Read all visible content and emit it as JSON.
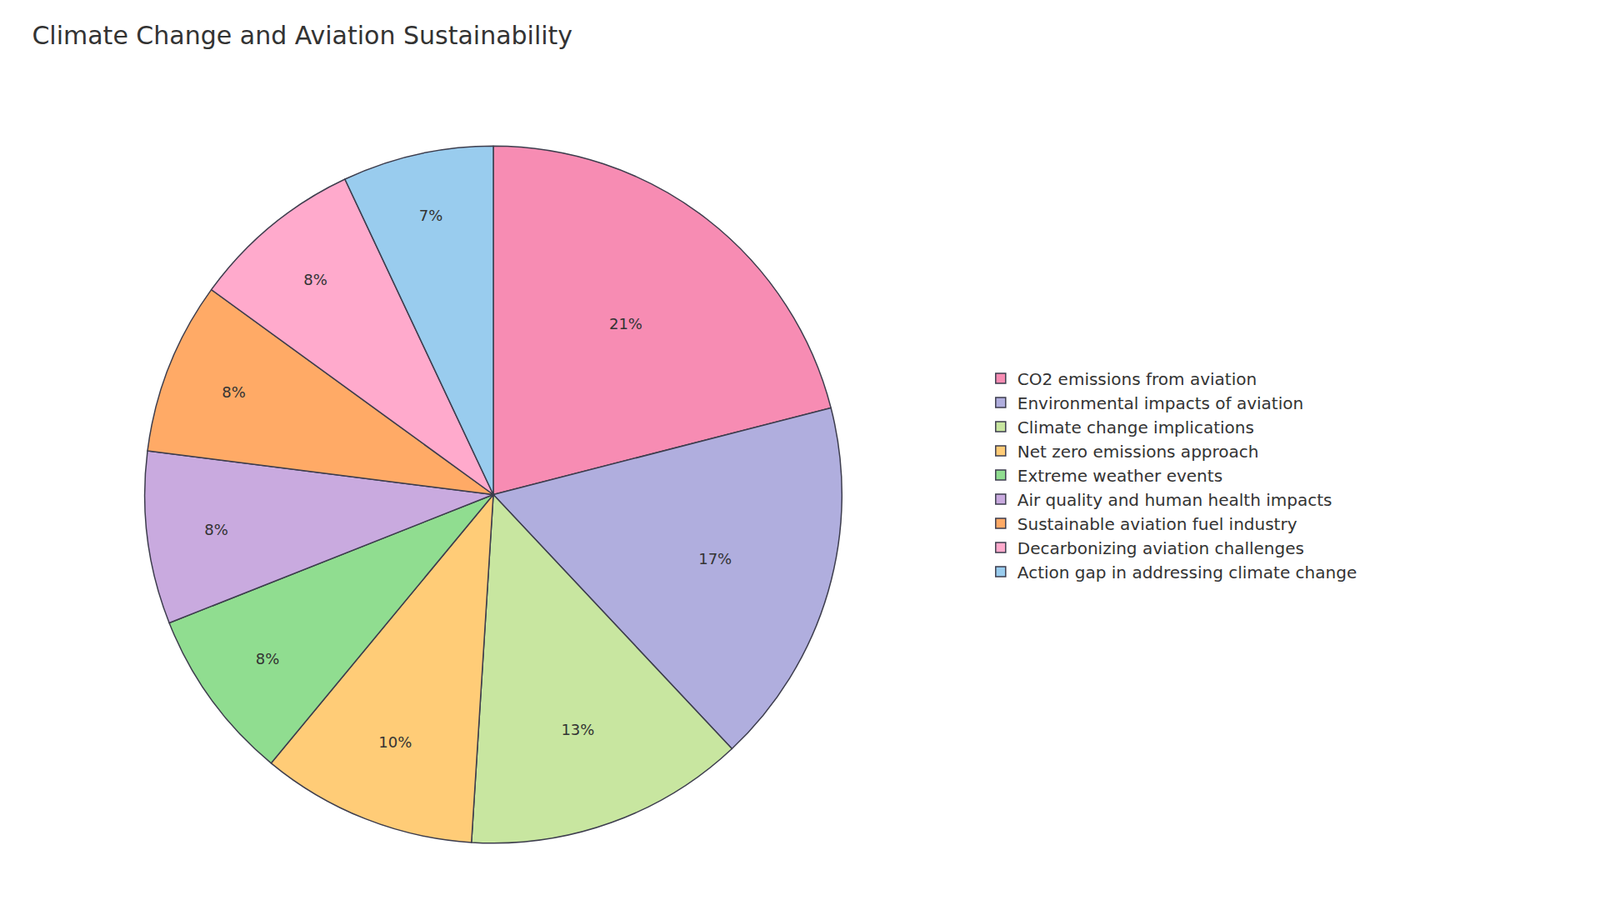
{
  "chart_data": {
    "type": "pie",
    "title": "Climate Change and Aviation Sustainability",
    "categories": [
      "CO2 emissions from aviation",
      "Environmental impacts of aviation",
      "Climate change implications",
      "Net zero emissions approach",
      "Extreme weather events",
      "Air quality and human health impacts",
      "Sustainable aviation fuel industry",
      "Decarbonizing aviation challenges",
      "Action gap in addressing climate change"
    ],
    "values": [
      21,
      17,
      13,
      10,
      8,
      8,
      8,
      8,
      7
    ],
    "value_labels": [
      "21%",
      "17%",
      "13%",
      "10%",
      "8%",
      "8%",
      "8%",
      "8%",
      "7%"
    ],
    "colors": [
      "#F78CB3",
      "#B0AEDE",
      "#C8E6A0",
      "#FFCC77",
      "#90DD90",
      "#C9AADF",
      "#FFAA66",
      "#FFAACC",
      "#99CCEE"
    ],
    "data_labels": true,
    "legend": "right"
  }
}
